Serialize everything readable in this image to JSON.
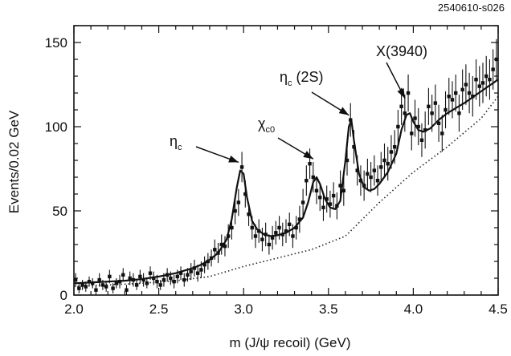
{
  "figure_id": "2540610-s026",
  "chart_data": {
    "type": "scatter",
    "title": "",
    "xlabel": "m (J/ψ recoil) (GeV)",
    "ylabel": "Events/0.02 GeV",
    "xlim": [
      2.0,
      4.5
    ],
    "ylim": [
      0,
      160
    ],
    "x_ticks": [
      2.0,
      2.5,
      3.0,
      3.5,
      4.0,
      4.5
    ],
    "x_tick_labels": [
      "2.0",
      "2.5",
      "3.0",
      "3.5",
      "4.0",
      "4.5"
    ],
    "y_ticks": [
      0,
      50,
      100,
      150
    ],
    "y_tick_labels": [
      "0",
      "50",
      "100",
      "150"
    ],
    "grid": false,
    "annotations": [
      {
        "label": "η",
        "sub": "c",
        "suffix": "",
        "target": [
          2.98,
          76
        ]
      },
      {
        "label": "χ",
        "sub": "c0",
        "suffix": "",
        "target": [
          3.42,
          78
        ]
      },
      {
        "label": "η",
        "sub": "c",
        "suffix": " (2S)",
        "target": [
          3.63,
          104
        ]
      },
      {
        "label": "X(3940)",
        "sub": "",
        "suffix": "",
        "target": [
          3.96,
          114
        ]
      }
    ],
    "series": [
      {
        "style": "points-with-error-bars",
        "x": [
          2.01,
          2.03,
          2.05,
          2.07,
          2.09,
          2.11,
          2.13,
          2.15,
          2.17,
          2.19,
          2.21,
          2.23,
          2.25,
          2.27,
          2.29,
          2.31,
          2.33,
          2.35,
          2.37,
          2.39,
          2.41,
          2.43,
          2.45,
          2.47,
          2.49,
          2.51,
          2.53,
          2.55,
          2.57,
          2.59,
          2.61,
          2.63,
          2.65,
          2.67,
          2.69,
          2.71,
          2.73,
          2.75,
          2.77,
          2.79,
          2.81,
          2.83,
          2.85,
          2.87,
          2.89,
          2.91,
          2.93,
          2.95,
          2.97,
          2.99,
          3.01,
          3.03,
          3.05,
          3.07,
          3.09,
          3.11,
          3.13,
          3.15,
          3.17,
          3.19,
          3.21,
          3.23,
          3.25,
          3.27,
          3.29,
          3.31,
          3.33,
          3.35,
          3.37,
          3.39,
          3.41,
          3.43,
          3.45,
          3.47,
          3.49,
          3.51,
          3.53,
          3.55,
          3.57,
          3.59,
          3.61,
          3.63,
          3.65,
          3.67,
          3.69,
          3.71,
          3.73,
          3.75,
          3.77,
          3.79,
          3.81,
          3.83,
          3.85,
          3.87,
          3.89,
          3.91,
          3.93,
          3.95,
          3.97,
          3.99,
          4.01,
          4.03,
          4.05,
          4.07,
          4.09,
          4.11,
          4.13,
          4.15,
          4.17,
          4.19,
          4.21,
          4.23,
          4.25,
          4.27,
          4.29,
          4.31,
          4.33,
          4.35,
          4.37,
          4.39,
          4.41,
          4.43,
          4.45,
          4.47,
          4.49
        ],
        "y": [
          9,
          4,
          6,
          5,
          8,
          7,
          3,
          9,
          6,
          5,
          11,
          4,
          7,
          8,
          12,
          3,
          10,
          9,
          6,
          11,
          9,
          7,
          13,
          10,
          8,
          6,
          9,
          12,
          10,
          8,
          11,
          13,
          9,
          12,
          14,
          16,
          13,
          15,
          18,
          20,
          22,
          27,
          25,
          30,
          29,
          35,
          40,
          50,
          55,
          76,
          60,
          48,
          40,
          35,
          38,
          33,
          36,
          30,
          34,
          37,
          40,
          36,
          38,
          42,
          35,
          40,
          45,
          55,
          68,
          78,
          70,
          62,
          58,
          52,
          57,
          54,
          59,
          53,
          65,
          62,
          80,
          104,
          88,
          74,
          68,
          65,
          72,
          70,
          74,
          68,
          76,
          80,
          78,
          85,
          88,
          100,
          112,
          108,
          120,
          96,
          105,
          100,
          92,
          98,
          112,
          108,
          114,
          102,
          96,
          110,
          118,
          116,
          120,
          108,
          122,
          125,
          120,
          118,
          128,
          124,
          126,
          130,
          128,
          134,
          140
        ],
        "err": [
          4,
          3,
          3,
          3,
          3,
          3,
          3,
          4,
          3,
          3,
          4,
          3,
          3,
          4,
          4,
          3,
          4,
          4,
          3,
          4,
          4,
          3,
          4,
          4,
          4,
          3,
          4,
          4,
          4,
          4,
          4,
          4,
          4,
          4,
          5,
          5,
          5,
          5,
          5,
          5,
          5,
          6,
          6,
          6,
          6,
          7,
          7,
          8,
          8,
          9,
          8,
          7,
          7,
          7,
          7,
          7,
          7,
          6,
          7,
          7,
          7,
          7,
          7,
          7,
          7,
          7,
          8,
          8,
          9,
          9,
          9,
          8,
          8,
          8,
          8,
          8,
          8,
          8,
          9,
          9,
          9,
          10,
          10,
          9,
          9,
          9,
          9,
          9,
          9,
          9,
          9,
          10,
          10,
          10,
          10,
          10,
          11,
          11,
          11,
          10,
          11,
          11,
          10,
          11,
          11,
          11,
          11,
          11,
          11,
          11,
          11,
          11,
          11,
          11,
          12,
          12,
          12,
          12,
          12,
          12,
          12,
          12,
          12,
          12,
          12
        ]
      },
      {
        "style": "solid-fit",
        "x": [
          2.0,
          2.1,
          2.2,
          2.3,
          2.4,
          2.5,
          2.6,
          2.7,
          2.75,
          2.8,
          2.85,
          2.9,
          2.93,
          2.96,
          2.98,
          3.0,
          3.02,
          3.05,
          3.08,
          3.12,
          3.16,
          3.2,
          3.25,
          3.3,
          3.35,
          3.38,
          3.41,
          3.43,
          3.45,
          3.48,
          3.51,
          3.54,
          3.57,
          3.6,
          3.62,
          3.635,
          3.65,
          3.68,
          3.71,
          3.74,
          3.77,
          3.8,
          3.85,
          3.9,
          3.93,
          3.96,
          3.98,
          4.0,
          4.03,
          4.06,
          4.1,
          4.15,
          4.2,
          4.3,
          4.4,
          4.5
        ],
        "y": [
          7,
          7.5,
          8,
          8.5,
          9.5,
          11,
          13,
          16,
          18,
          21,
          25,
          33,
          45,
          64,
          74,
          72,
          58,
          44,
          39,
          36,
          35,
          35.5,
          37,
          40,
          46,
          55,
          67,
          70,
          66,
          57,
          52,
          51,
          56,
          80,
          100,
          104,
          92,
          72,
          64,
          62,
          63,
          66,
          73,
          84,
          98,
          107,
          108,
          103,
          98,
          97,
          99,
          104,
          108,
          114,
          121,
          128
        ]
      },
      {
        "style": "dotted-background",
        "x": [
          2.0,
          2.2,
          2.4,
          2.6,
          2.8,
          3.0,
          3.2,
          3.4,
          3.6,
          3.8,
          4.0,
          4.2,
          4.4,
          4.5
        ],
        "y": [
          5,
          6,
          7,
          8.5,
          11,
          17,
          22,
          27,
          35,
          55,
          73,
          88,
          105,
          118
        ]
      }
    ]
  }
}
